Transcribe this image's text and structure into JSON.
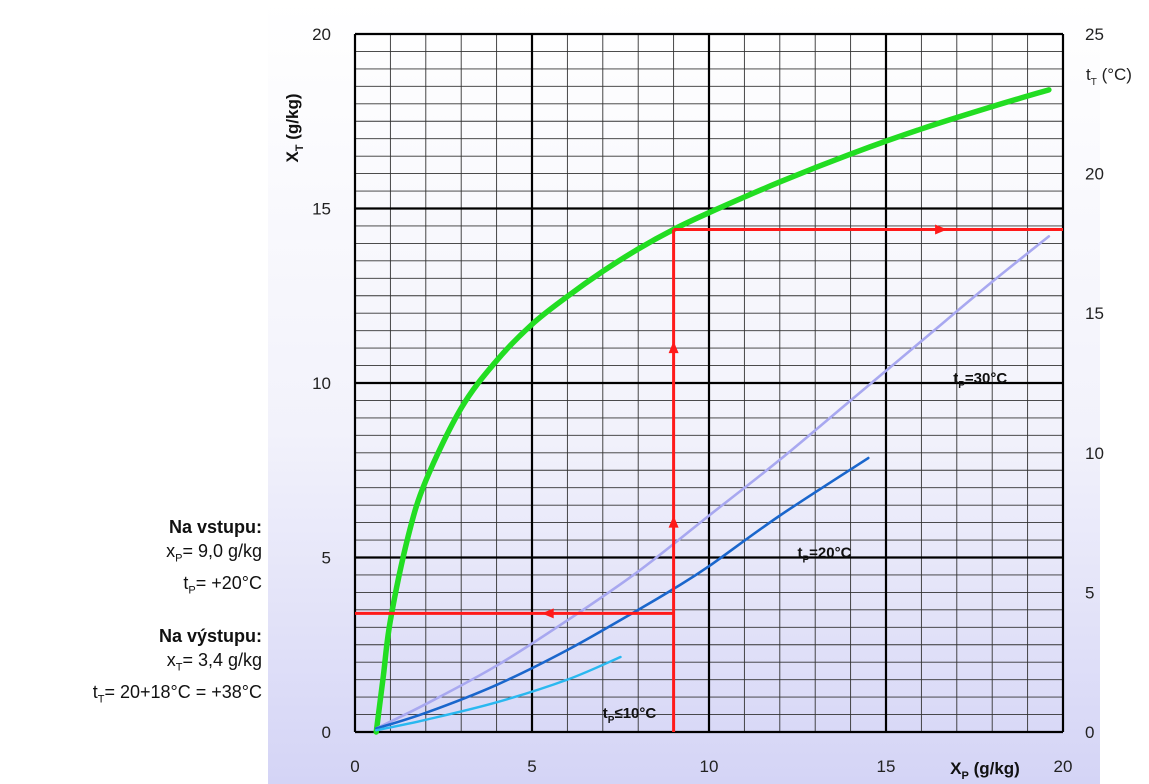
{
  "chart_data": {
    "type": "line",
    "xlabel": {
      "main": "X",
      "sub": "P",
      "rest": " (g/kg)"
    },
    "ylabel": {
      "main": "X",
      "sub": "T",
      "rest": " (g/kg)"
    },
    "y2label": {
      "main": "t",
      "sub": "T",
      "rest": " (°C)"
    },
    "xlim": [
      0,
      20
    ],
    "ylim": [
      0,
      20
    ],
    "y2lim": [
      0,
      25
    ],
    "x_ticks": [
      "0",
      "5",
      "10",
      "15",
      "20"
    ],
    "y_ticks": [
      "0",
      "5",
      "10",
      "15",
      "20"
    ],
    "y2_ticks": [
      "0",
      "5",
      "10",
      "15",
      "20",
      "25"
    ],
    "grid": true,
    "series": [
      {
        "name": "",
        "axis": "y2",
        "color": "#22dd22",
        "x": [
          0.6,
          0.8,
          1.0,
          1.5,
          2.0,
          3.0,
          4.0,
          5.0,
          6.0,
          7.0,
          8.0,
          9.0,
          10.0,
          12.0,
          14.0,
          16.0,
          18.0,
          19.6
        ],
        "y": [
          0.0,
          2.0,
          4.0,
          7.0,
          9.0,
          11.6,
          13.3,
          14.6,
          15.6,
          16.5,
          17.3,
          18.0,
          18.6,
          19.7,
          20.7,
          21.6,
          22.4,
          23.0
        ]
      },
      {
        "name": "t_P=30°C",
        "label": {
          "main": "t",
          "sub": "P",
          "rest": "=30°C"
        },
        "axis": "y",
        "color": "#a8a8f0",
        "x": [
          0.6,
          2.0,
          4.0,
          6.0,
          8.0,
          10.0,
          12.0,
          14.0,
          16.0,
          18.0,
          19.6
        ],
        "y": [
          0.1,
          0.8,
          1.9,
          3.2,
          4.6,
          6.2,
          7.8,
          9.5,
          11.2,
          12.9,
          14.2
        ]
      },
      {
        "name": "t_P=20°C",
        "label": {
          "main": "t",
          "sub": "P",
          "rest": "=20°C"
        },
        "axis": "y",
        "color": "#1a66cc",
        "x": [
          0.6,
          2.0,
          4.0,
          6.0,
          8.0,
          9.0,
          10.0,
          12.0,
          14.5
        ],
        "y": [
          0.1,
          0.55,
          1.35,
          2.35,
          3.5,
          4.1,
          4.75,
          6.2,
          7.85
        ]
      },
      {
        "name": "t_P≤10°C",
        "label": {
          "main": "t",
          "sub": "P",
          "rest": "≤10°C"
        },
        "axis": "y",
        "color": "#2ab8f0",
        "x": [
          0.6,
          2.0,
          4.0,
          6.0,
          7.5
        ],
        "y": [
          0.05,
          0.35,
          0.85,
          1.5,
          2.15
        ]
      }
    ],
    "example": {
      "color": "#ff1a1a",
      "x_p": 9.0,
      "x_t": 3.4,
      "t_t_delta": 18
    }
  },
  "panel": {
    "inlet_heading": "Na vstupu:",
    "inlet_xp": {
      "main": "x",
      "sub": "P",
      "rest": "= 9,0 g/kg"
    },
    "inlet_tp": {
      "main": "t",
      "sub": "P",
      "rest": "= +20°C"
    },
    "outlet_heading": "Na výstupu:",
    "outlet_xt": {
      "main": "x",
      "sub": "T",
      "rest": "= 3,4 g/kg"
    },
    "outlet_tt": {
      "main": "t",
      "sub": "T",
      "rest": "= 20+18°C = +38°C"
    }
  }
}
